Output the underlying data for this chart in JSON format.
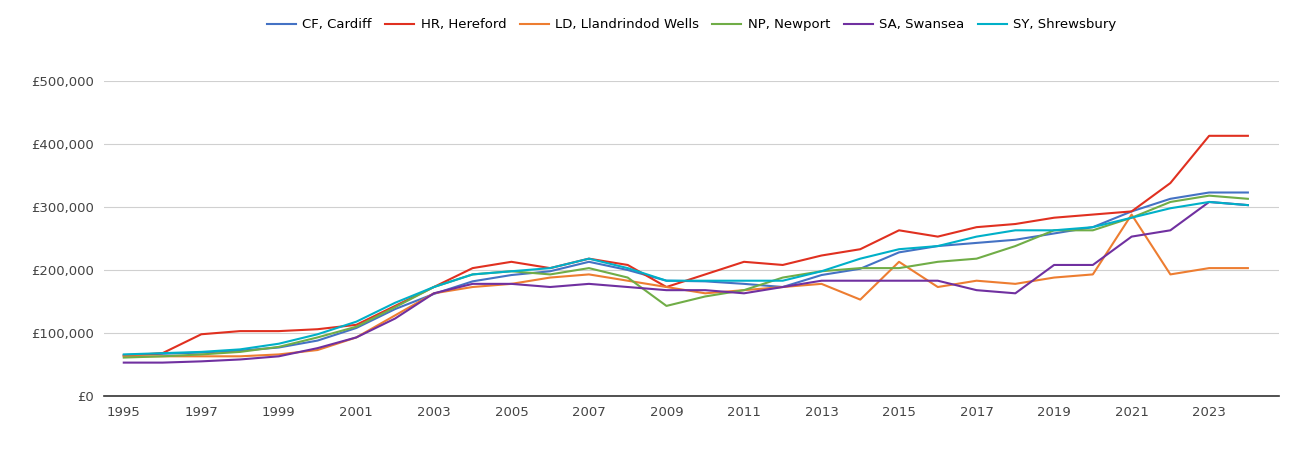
{
  "series": {
    "CF, Cardiff": {
      "color": "#4472C4",
      "data": [
        [
          1995,
          65000
        ],
        [
          1996,
          67000
        ],
        [
          1997,
          69000
        ],
        [
          1998,
          72000
        ],
        [
          1999,
          77000
        ],
        [
          2000,
          88000
        ],
        [
          2001,
          108000
        ],
        [
          2002,
          138000
        ],
        [
          2003,
          162000
        ],
        [
          2004,
          182000
        ],
        [
          2005,
          192000
        ],
        [
          2006,
          198000
        ],
        [
          2007,
          213000
        ],
        [
          2008,
          200000
        ],
        [
          2009,
          183000
        ],
        [
          2010,
          182000
        ],
        [
          2011,
          178000
        ],
        [
          2012,
          173000
        ],
        [
          2013,
          192000
        ],
        [
          2014,
          202000
        ],
        [
          2015,
          228000
        ],
        [
          2016,
          238000
        ],
        [
          2017,
          243000
        ],
        [
          2018,
          248000
        ],
        [
          2019,
          258000
        ],
        [
          2020,
          268000
        ],
        [
          2021,
          293000
        ],
        [
          2022,
          313000
        ],
        [
          2023,
          323000
        ],
        [
          2024,
          323000
        ]
      ]
    },
    "HR, Hereford": {
      "color": "#E03020",
      "data": [
        [
          1995,
          64000
        ],
        [
          1996,
          68000
        ],
        [
          1997,
          98000
        ],
        [
          1998,
          103000
        ],
        [
          1999,
          103000
        ],
        [
          2000,
          106000
        ],
        [
          2001,
          113000
        ],
        [
          2002,
          143000
        ],
        [
          2003,
          173000
        ],
        [
          2004,
          203000
        ],
        [
          2005,
          213000
        ],
        [
          2006,
          203000
        ],
        [
          2007,
          218000
        ],
        [
          2008,
          208000
        ],
        [
          2009,
          173000
        ],
        [
          2010,
          193000
        ],
        [
          2011,
          213000
        ],
        [
          2012,
          208000
        ],
        [
          2013,
          223000
        ],
        [
          2014,
          233000
        ],
        [
          2015,
          263000
        ],
        [
          2016,
          253000
        ],
        [
          2017,
          268000
        ],
        [
          2018,
          273000
        ],
        [
          2019,
          283000
        ],
        [
          2020,
          288000
        ],
        [
          2021,
          293000
        ],
        [
          2022,
          338000
        ],
        [
          2023,
          413000
        ],
        [
          2024,
          413000
        ]
      ]
    },
    "LD, Llandrindod Wells": {
      "color": "#ED7D31",
      "data": [
        [
          1995,
          63000
        ],
        [
          1996,
          63000
        ],
        [
          1997,
          63000
        ],
        [
          1998,
          63000
        ],
        [
          1999,
          66000
        ],
        [
          2000,
          73000
        ],
        [
          2001,
          93000
        ],
        [
          2002,
          128000
        ],
        [
          2003,
          163000
        ],
        [
          2004,
          173000
        ],
        [
          2005,
          178000
        ],
        [
          2006,
          188000
        ],
        [
          2007,
          193000
        ],
        [
          2008,
          183000
        ],
        [
          2009,
          173000
        ],
        [
          2010,
          163000
        ],
        [
          2011,
          168000
        ],
        [
          2012,
          173000
        ],
        [
          2013,
          178000
        ],
        [
          2014,
          153000
        ],
        [
          2015,
          213000
        ],
        [
          2016,
          173000
        ],
        [
          2017,
          183000
        ],
        [
          2018,
          178000
        ],
        [
          2019,
          188000
        ],
        [
          2020,
          193000
        ],
        [
          2021,
          288000
        ],
        [
          2022,
          193000
        ],
        [
          2023,
          203000
        ],
        [
          2024,
          203000
        ]
      ]
    },
    "NP, Newport": {
      "color": "#70AD47",
      "data": [
        [
          1995,
          61000
        ],
        [
          1996,
          63000
        ],
        [
          1997,
          66000
        ],
        [
          1998,
          70000
        ],
        [
          1999,
          78000
        ],
        [
          2000,
          93000
        ],
        [
          2001,
          110000
        ],
        [
          2002,
          141000
        ],
        [
          2003,
          173000
        ],
        [
          2004,
          193000
        ],
        [
          2005,
          198000
        ],
        [
          2006,
          193000
        ],
        [
          2007,
          203000
        ],
        [
          2008,
          188000
        ],
        [
          2009,
          143000
        ],
        [
          2010,
          158000
        ],
        [
          2011,
          168000
        ],
        [
          2012,
          188000
        ],
        [
          2013,
          198000
        ],
        [
          2014,
          203000
        ],
        [
          2015,
          203000
        ],
        [
          2016,
          213000
        ],
        [
          2017,
          218000
        ],
        [
          2018,
          238000
        ],
        [
          2019,
          263000
        ],
        [
          2020,
          263000
        ],
        [
          2021,
          283000
        ],
        [
          2022,
          308000
        ],
        [
          2023,
          318000
        ],
        [
          2024,
          313000
        ]
      ]
    },
    "SA, Swansea": {
      "color": "#7030A0",
      "data": [
        [
          1995,
          53000
        ],
        [
          1996,
          53000
        ],
        [
          1997,
          55000
        ],
        [
          1998,
          58000
        ],
        [
          1999,
          63000
        ],
        [
          2000,
          76000
        ],
        [
          2001,
          93000
        ],
        [
          2002,
          123000
        ],
        [
          2003,
          163000
        ],
        [
          2004,
          178000
        ],
        [
          2005,
          178000
        ],
        [
          2006,
          173000
        ],
        [
          2007,
          178000
        ],
        [
          2008,
          173000
        ],
        [
          2009,
          168000
        ],
        [
          2010,
          168000
        ],
        [
          2011,
          163000
        ],
        [
          2012,
          173000
        ],
        [
          2013,
          183000
        ],
        [
          2014,
          183000
        ],
        [
          2015,
          183000
        ],
        [
          2016,
          183000
        ],
        [
          2017,
          168000
        ],
        [
          2018,
          163000
        ],
        [
          2019,
          208000
        ],
        [
          2020,
          208000
        ],
        [
          2021,
          253000
        ],
        [
          2022,
          263000
        ],
        [
          2023,
          308000
        ],
        [
          2024,
          303000
        ]
      ]
    },
    "SY, Shrewsbury": {
      "color": "#00B0C8",
      "data": [
        [
          1995,
          66000
        ],
        [
          1996,
          68000
        ],
        [
          1997,
          70000
        ],
        [
          1998,
          74000
        ],
        [
          1999,
          83000
        ],
        [
          2000,
          98000
        ],
        [
          2001,
          118000
        ],
        [
          2002,
          148000
        ],
        [
          2003,
          173000
        ],
        [
          2004,
          193000
        ],
        [
          2005,
          198000
        ],
        [
          2006,
          203000
        ],
        [
          2007,
          218000
        ],
        [
          2008,
          203000
        ],
        [
          2009,
          183000
        ],
        [
          2010,
          183000
        ],
        [
          2011,
          183000
        ],
        [
          2012,
          183000
        ],
        [
          2013,
          198000
        ],
        [
          2014,
          218000
        ],
        [
          2015,
          233000
        ],
        [
          2016,
          238000
        ],
        [
          2017,
          253000
        ],
        [
          2018,
          263000
        ],
        [
          2019,
          263000
        ],
        [
          2020,
          268000
        ],
        [
          2021,
          283000
        ],
        [
          2022,
          298000
        ],
        [
          2023,
          308000
        ],
        [
          2024,
          303000
        ]
      ]
    }
  },
  "ylim": [
    0,
    500000
  ],
  "yticks": [
    0,
    100000,
    200000,
    300000,
    400000,
    500000
  ],
  "ytick_labels": [
    "£0",
    "£100,000",
    "£200,000",
    "£300,000",
    "£400,000",
    "£500,000"
  ],
  "xtick_years": [
    1995,
    1997,
    1999,
    2001,
    2003,
    2005,
    2007,
    2009,
    2011,
    2013,
    2015,
    2017,
    2019,
    2021,
    2023
  ],
  "background_color": "#ffffff",
  "grid_color": "#d0d0d0",
  "legend_order": [
    "CF, Cardiff",
    "HR, Hereford",
    "LD, Llandrindod Wells",
    "NP, Newport",
    "SA, Swansea",
    "SY, Shrewsbury"
  ]
}
